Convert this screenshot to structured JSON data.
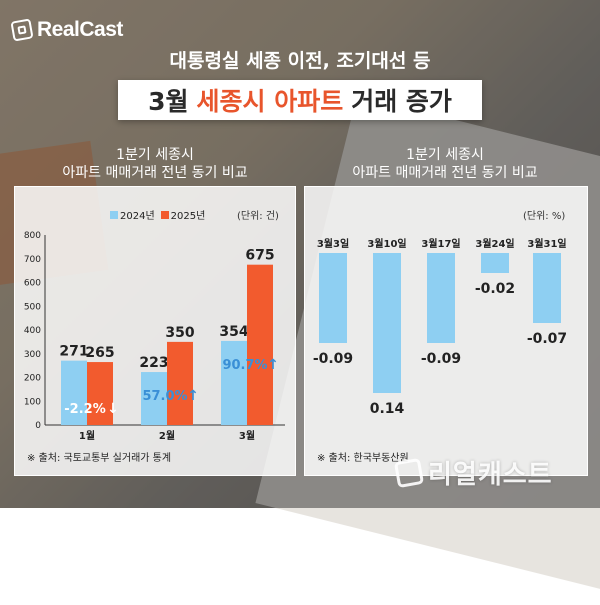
{
  "brand": {
    "logo": "RealCast",
    "watermark": "리얼캐스트"
  },
  "header": {
    "headline": "대통령실 세종 이전, 조기대선 등",
    "title_pre": "3월",
    "title_accent": "세종시 아파트",
    "title_post": "거래 증가"
  },
  "left": {
    "subtitle_line1": "1분기 세종시",
    "subtitle_line2": "아파트 매매거래 전년 동기 비교",
    "unit": "(단위: 건)",
    "source": "※ 출처: 국토교통부 실거래가 통계"
  },
  "right": {
    "subtitle_line1": "1분기 세종시",
    "subtitle_line2": "아파트 매매거래 전년 동기 비교",
    "unit": "(단위: %)",
    "source": "※ 출처: 한국부동산원"
  },
  "colors": {
    "blue": "#8ecff2",
    "orange": "#f25b2e",
    "accent": "#e8552c",
    "arrow": "#3a8fd6"
  },
  "chart_data": [
    {
      "type": "bar",
      "categories": [
        "1월",
        "2월",
        "3월"
      ],
      "series": [
        {
          "name": "2024년",
          "values": [
            271,
            223,
            354
          ]
        },
        {
          "name": "2025년",
          "values": [
            265,
            350,
            675
          ]
        }
      ],
      "annotations": [
        "-2.2%",
        "57.0%",
        "90.7%"
      ],
      "ylim": [
        0,
        800
      ],
      "yticks": [
        "0",
        "100",
        "200",
        "300",
        "400",
        "500",
        "600",
        "700",
        "800"
      ],
      "legend": "top-center",
      "grid": false
    },
    {
      "type": "bar",
      "categories": [
        "3월3일",
        "3월10일",
        "3월17일",
        "3월24일",
        "3월31일"
      ],
      "values": [
        -0.09,
        0.14,
        -0.09,
        -0.02,
        -0.07
      ],
      "labels": [
        "-0.09",
        "0.14",
        "-0.09",
        "-0.02",
        "-0.07"
      ],
      "grid": false
    }
  ]
}
